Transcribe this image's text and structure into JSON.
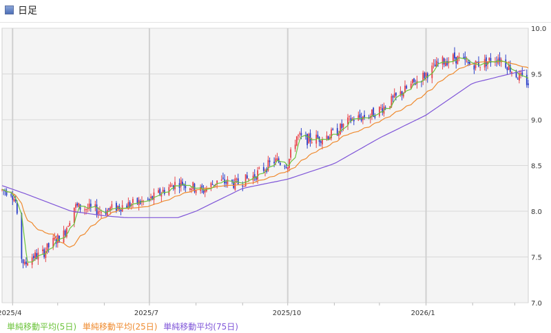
{
  "header": {
    "title": "日足"
  },
  "chart_data": {
    "type": "candlestick",
    "ylim": [
      7.0,
      10.0
    ],
    "y_ticks": [
      "10.0",
      "9.5",
      "9.0",
      "8.5",
      "8.0",
      "7.5",
      "7.0"
    ],
    "x_ticks": [
      {
        "label": "2025/4",
        "date": "2025-04-01"
      },
      {
        "label": "2025/7",
        "date": "2025-07-01"
      },
      {
        "label": "2025/10",
        "date": "2025-10-01"
      },
      {
        "label": "2026/1",
        "date": "2026-01-01"
      }
    ],
    "x_range": [
      "2025-03-25",
      "2026-03-10"
    ],
    "grid": true,
    "colors": {
      "up": "#e8434a",
      "down": "#2b3fc9",
      "ma5": "#6bc33a",
      "ma25": "#ef8a2e",
      "ma75": "#7f55d8"
    },
    "ohlc_anchors": [
      [
        "2025-03-25",
        8.23
      ],
      [
        "2025-03-31",
        8.22
      ],
      [
        "2025-04-03",
        8.1
      ],
      [
        "2025-04-06",
        7.55
      ],
      [
        "2025-04-09",
        7.4
      ],
      [
        "2025-04-12",
        7.5
      ],
      [
        "2025-04-20",
        7.52
      ],
      [
        "2025-04-27",
        7.65
      ],
      [
        "2025-05-05",
        7.75
      ],
      [
        "2025-05-12",
        8.05
      ],
      [
        "2025-05-25",
        8.02
      ],
      [
        "2025-06-01",
        8.0
      ],
      [
        "2025-06-10",
        8.05
      ],
      [
        "2025-06-20",
        8.08
      ],
      [
        "2025-07-01",
        8.12
      ],
      [
        "2025-07-10",
        8.22
      ],
      [
        "2025-07-20",
        8.32
      ],
      [
        "2025-07-28",
        8.28
      ],
      [
        "2025-08-05",
        8.22
      ],
      [
        "2025-08-15",
        8.33
      ],
      [
        "2025-08-28",
        8.3
      ],
      [
        "2025-09-08",
        8.38
      ],
      [
        "2025-09-22",
        8.55
      ],
      [
        "2025-10-01",
        8.52
      ],
      [
        "2025-10-07",
        8.82
      ],
      [
        "2025-10-13",
        8.78
      ],
      [
        "2025-10-22",
        8.8
      ],
      [
        "2025-11-01",
        8.85
      ],
      [
        "2025-11-12",
        9.0
      ],
      [
        "2025-11-25",
        9.05
      ],
      [
        "2025-12-05",
        9.15
      ],
      [
        "2025-12-20",
        9.35
      ],
      [
        "2026-01-01",
        9.5
      ],
      [
        "2026-01-10",
        9.62
      ],
      [
        "2026-01-20",
        9.68
      ],
      [
        "2026-01-30",
        9.6
      ],
      [
        "2026-02-08",
        9.62
      ],
      [
        "2026-02-18",
        9.68
      ],
      [
        "2026-02-24",
        9.6
      ],
      [
        "2026-03-01",
        9.5
      ],
      [
        "2026-03-10",
        9.4
      ]
    ],
    "ma75_anchors": [
      [
        "2025-03-25",
        8.28
      ],
      [
        "2025-04-08",
        8.2
      ],
      [
        "2025-05-10",
        8.0
      ],
      [
        "2025-06-01",
        7.95
      ],
      [
        "2025-06-15",
        7.93
      ],
      [
        "2025-07-20",
        7.93
      ],
      [
        "2025-08-01",
        8.0
      ],
      [
        "2025-09-01",
        8.25
      ],
      [
        "2025-10-01",
        8.35
      ],
      [
        "2025-11-01",
        8.52
      ],
      [
        "2025-12-01",
        8.8
      ],
      [
        "2026-01-01",
        9.05
      ],
      [
        "2026-02-01",
        9.4
      ],
      [
        "2026-03-10",
        9.55
      ]
    ],
    "series": [
      {
        "name": "単純移動平均(5日)"
      },
      {
        "name": "単純移動平均(25日)"
      },
      {
        "name": "単純移動平均(75日)"
      }
    ]
  }
}
